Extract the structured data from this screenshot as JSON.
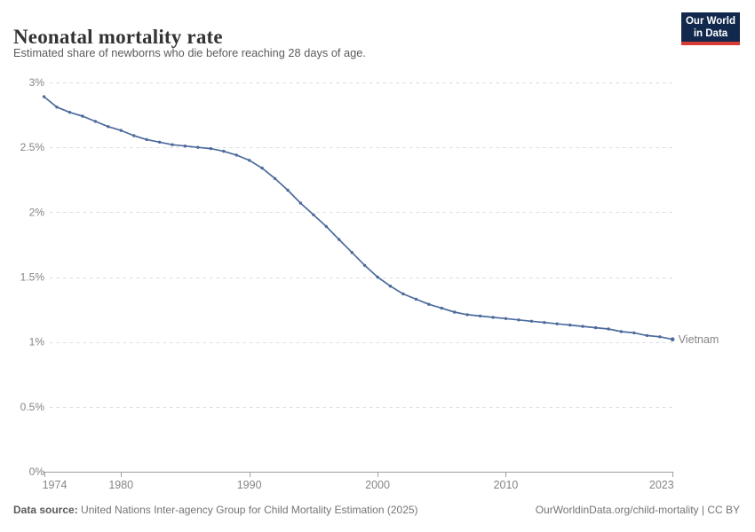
{
  "header": {
    "title": "Neonatal mortality rate",
    "subtitle": "Estimated share of newborns who die before reaching 28 days of age.",
    "logo": {
      "line1": "Our World",
      "line2": "in Data"
    }
  },
  "footer": {
    "source_label": "Data source:",
    "source_text": " United Nations Inter-agency Group for Child Mortality Estimation (2025)",
    "link_text": "OurWorldinData.org/child-mortality",
    "license_suffix": " | CC BY"
  },
  "colors": {
    "line_blue": "#4c6a9c",
    "grid_gray": "#dddddd",
    "axis_gray": "#9e9e9e",
    "tick_text_gray": "#858585",
    "logo_navy": "#12294d",
    "logo_red": "#d73c34"
  },
  "chart_data": {
    "type": "line",
    "title": "Neonatal mortality rate",
    "subtitle": "Estimated share of newborns who die before reaching 28 days of age.",
    "unit": "%",
    "grid": "horizontal-dashed",
    "legend_position": "end-of-line-label",
    "xlim": [
      1974,
      2023
    ],
    "ylim": [
      0,
      3
    ],
    "x_ticks": [
      1974,
      1980,
      1990,
      2000,
      2010,
      2023
    ],
    "y_ticks": [
      {
        "value": 0,
        "label": "0%"
      },
      {
        "value": 0.5,
        "label": "0.5%"
      },
      {
        "value": 1,
        "label": "1%"
      },
      {
        "value": 1.5,
        "label": "1.5%"
      },
      {
        "value": 2,
        "label": "2%"
      },
      {
        "value": 2.5,
        "label": "2.5%"
      },
      {
        "value": 3,
        "label": "3%"
      }
    ],
    "series": [
      {
        "name": "Vietnam",
        "color": "#4c6a9c",
        "points": [
          [
            1974,
            2.89
          ],
          [
            1975,
            2.81
          ],
          [
            1976,
            2.77
          ],
          [
            1977,
            2.74
          ],
          [
            1978,
            2.7
          ],
          [
            1979,
            2.66
          ],
          [
            1980,
            2.63
          ],
          [
            1981,
            2.59
          ],
          [
            1982,
            2.56
          ],
          [
            1983,
            2.54
          ],
          [
            1984,
            2.52
          ],
          [
            1985,
            2.51
          ],
          [
            1986,
            2.5
          ],
          [
            1987,
            2.49
          ],
          [
            1988,
            2.47
          ],
          [
            1989,
            2.44
          ],
          [
            1990,
            2.4
          ],
          [
            1991,
            2.34
          ],
          [
            1992,
            2.26
          ],
          [
            1993,
            2.17
          ],
          [
            1994,
            2.07
          ],
          [
            1995,
            1.98
          ],
          [
            1996,
            1.89
          ],
          [
            1997,
            1.79
          ],
          [
            1998,
            1.69
          ],
          [
            1999,
            1.59
          ],
          [
            2000,
            1.5
          ],
          [
            2001,
            1.43
          ],
          [
            2002,
            1.37
          ],
          [
            2003,
            1.33
          ],
          [
            2004,
            1.29
          ],
          [
            2005,
            1.26
          ],
          [
            2006,
            1.23
          ],
          [
            2007,
            1.21
          ],
          [
            2008,
            1.2
          ],
          [
            2009,
            1.19
          ],
          [
            2010,
            1.18
          ],
          [
            2011,
            1.17
          ],
          [
            2012,
            1.16
          ],
          [
            2013,
            1.15
          ],
          [
            2014,
            1.14
          ],
          [
            2015,
            1.13
          ],
          [
            2016,
            1.12
          ],
          [
            2017,
            1.11
          ],
          [
            2018,
            1.1
          ],
          [
            2019,
            1.08
          ],
          [
            2020,
            1.07
          ],
          [
            2021,
            1.05
          ],
          [
            2022,
            1.04
          ],
          [
            2023,
            1.02
          ]
        ]
      }
    ]
  }
}
